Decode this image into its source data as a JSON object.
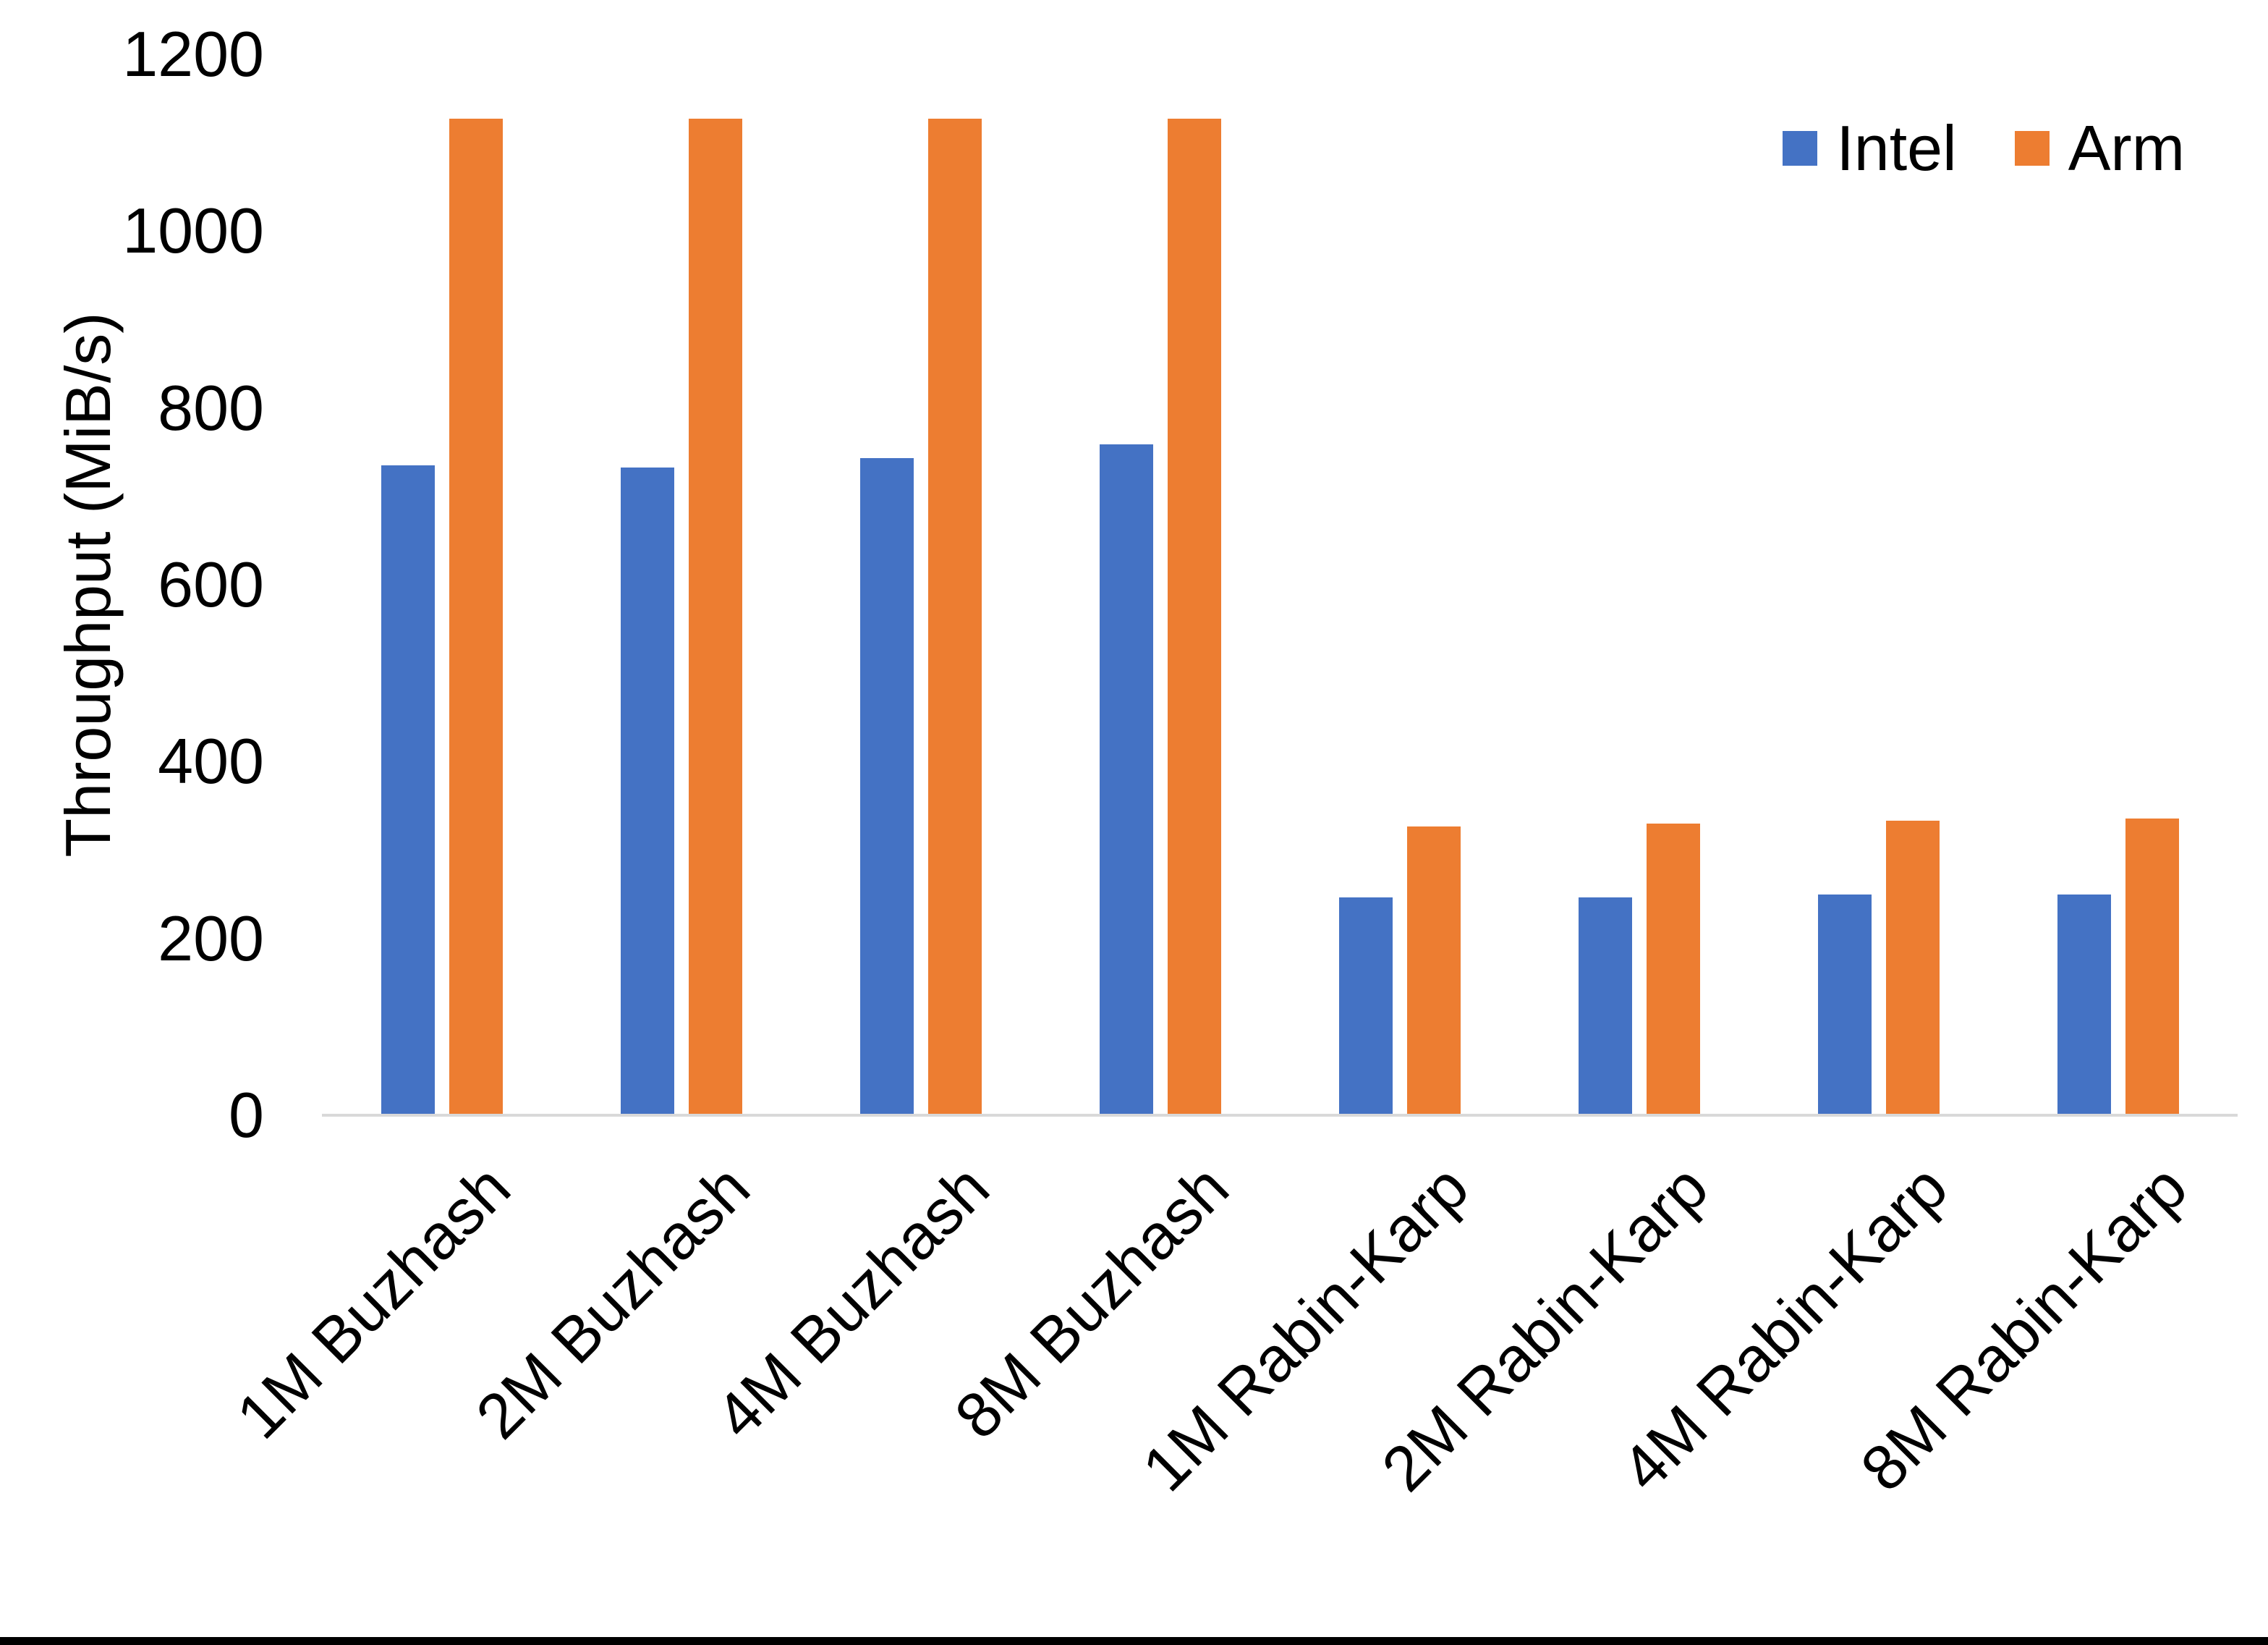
{
  "chart_data": {
    "type": "bar",
    "title": "",
    "categories": [
      "1M Buzhash",
      "2M Buzhash",
      "4M Buzhash",
      "8M Buzhash",
      "1M Rabin-Karp",
      "2M Rabin-Karp",
      "4M Rabin-Karp",
      "8M Rabin-Karp"
    ],
    "series": [
      {
        "name": "Intel",
        "color": "#4472C4",
        "values": [
          735,
          733,
          743,
          759,
          246,
          246,
          250,
          250
        ]
      },
      {
        "name": "Arm",
        "color": "#ED7D31",
        "values": [
          1127,
          1127,
          1127,
          1127,
          327,
          330,
          333,
          336
        ]
      }
    ],
    "xlabel": "",
    "ylabel": "Throughput (MiB/s)",
    "ylim": [
      0,
      1200
    ],
    "yticks": [
      0,
      200,
      400,
      600,
      800,
      1000,
      1200
    ],
    "grid": false,
    "legend": [
      "Intel",
      "Arm"
    ],
    "legend_position": "top-right",
    "axis_line_color": "#D9D9D9",
    "text_color": "#000000",
    "background_color": "#FFFFFF",
    "bottom_border_color": "#000000"
  }
}
